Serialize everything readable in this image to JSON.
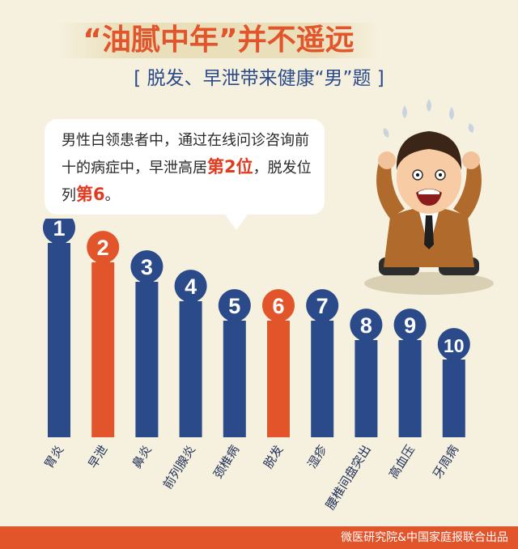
{
  "header": {
    "title": "“油腻中年”并不遥远",
    "subtitle": "[ 脱发、早泄带来健康“男”题 ]"
  },
  "callout": {
    "text_1": "男性白领患者中，通过在线问诊咨询前十的病症中，早泄高居",
    "highlight_1": "第2位",
    "text_2": "，脱发位列",
    "highlight_2": "第6",
    "text_3": "。"
  },
  "footer": {
    "credit": "微医研究院&中国家庭报联合出品"
  },
  "colors": {
    "blue": "#2b4a8a",
    "orange": "#e2552b",
    "background": "#f6f1df"
  },
  "chart_data": {
    "type": "bar",
    "categories": [
      "胃炎",
      "早泄",
      "鼻炎",
      "前列腺炎",
      "颈椎病",
      "脱发",
      "湿疹",
      "腰椎间盘突出",
      "高血压",
      "牙周病"
    ],
    "rank_labels": [
      "1",
      "2",
      "3",
      "4",
      "5",
      "6",
      "7",
      "8",
      "9",
      "10"
    ],
    "values": [
      10,
      9,
      8,
      7,
      6,
      6,
      6,
      5,
      5,
      4
    ],
    "highlighted": [
      "早泄",
      "脱发"
    ],
    "value_axis_shown": false,
    "grid": false
  }
}
